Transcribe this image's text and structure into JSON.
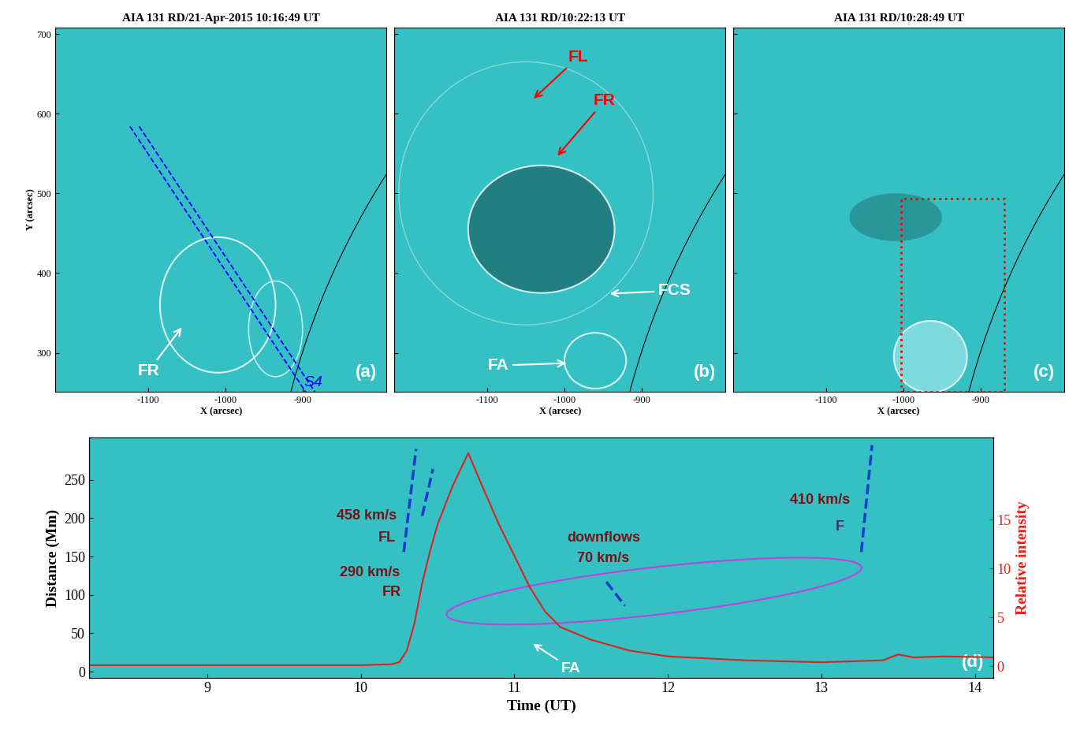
{
  "chart_data": [
    {
      "type": "image",
      "title": "AIA 131 RD/21-Apr-2015 10:16:49 UT",
      "xlabel": "X (arcsec)",
      "ylabel": "Y (arcsec)",
      "xlim": [
        -1221,
        -791
      ],
      "ylim": [
        251,
        708
      ],
      "xticks": [
        -1100,
        -1000,
        -900
      ],
      "yticks": [
        300,
        400,
        500,
        600,
        700
      ],
      "limb_radius": 949,
      "panel_label": "(a)",
      "annotations": [
        {
          "text": "FR",
          "x": -1100,
          "y": 277,
          "arrow_x": -1055,
          "arrow_y": 334,
          "color": "white"
        },
        {
          "text": "S4",
          "x": -886,
          "y": 262,
          "color": "blue"
        }
      ],
      "slit": {
        "x": [
          -1118,
          -888
        ],
        "y": [
          584,
          248
        ],
        "color": "blue",
        "line_style": "dashed"
      }
    },
    {
      "type": "image",
      "title": "AIA 131 RD/10:22:13 UT",
      "xlabel": "X (arcsec)",
      "tick_labels": "x",
      "xlim": [
        -1221,
        -791
      ],
      "ylim": [
        251,
        708
      ],
      "xticks": [
        -1100,
        -1000,
        -900
      ],
      "yticks": [
        300,
        400,
        500,
        600,
        700
      ],
      "limb_radius": 949,
      "panel_label": "(b)",
      "annotations": [
        {
          "text": "FL",
          "x": -982,
          "y": 671,
          "arrow_x": -1042,
          "arrow_y": 617,
          "color": "red"
        },
        {
          "text": "FR",
          "x": -948,
          "y": 616,
          "arrow_x": -1011,
          "arrow_y": 545,
          "color": "red"
        },
        {
          "text": "FCS",
          "x": -857,
          "y": 378,
          "arrow_x": -944,
          "arrow_y": 374,
          "color": "white"
        },
        {
          "text": "FA",
          "x": -1086,
          "y": 284,
          "arrow_x": -995,
          "arrow_y": 287,
          "color": "white"
        }
      ]
    },
    {
      "type": "image",
      "title": "AIA 131 RD/10:28:49 UT",
      "xlabel": "X (arcsec)",
      "tick_labels": "x",
      "xlim": [
        -1221,
        -791
      ],
      "ylim": [
        251,
        708
      ],
      "xticks": [
        -1100,
        -1000,
        -900
      ],
      "yticks": [
        300,
        400,
        500,
        600,
        700
      ],
      "limb_radius": 949,
      "panel_label": "(c)",
      "box": {
        "x": [
          -1003,
          -869
        ],
        "y": [
          251,
          493
        ],
        "color": "red",
        "line_style": "dotted"
      }
    },
    {
      "type": "line",
      "xlabel": "Time (UT)",
      "ylabel": "Distance (Mm)",
      "y2label": "Relative intensity",
      "xlim": [
        8.23,
        14.12
      ],
      "xticks": [
        9,
        10,
        11,
        12,
        13,
        14
      ],
      "ylim": [
        -8,
        305
      ],
      "yticks": [
        0,
        50,
        100,
        150,
        200,
        250
      ],
      "y2lim": [
        -1.2,
        23.4
      ],
      "y2ticks": [
        0,
        5,
        10,
        15
      ],
      "x": [
        8.23,
        9.0,
        9.5,
        10.0,
        10.2,
        10.25,
        10.3,
        10.35,
        10.4,
        10.45,
        10.5,
        10.6,
        10.7,
        10.8,
        10.9,
        11.0,
        11.1,
        11.2,
        11.3,
        11.5,
        11.75,
        12.0,
        12.5,
        13.0,
        13.4,
        13.5,
        13.6,
        13.8,
        14.12
      ],
      "series": [
        {
          "name": "Relative intensity",
          "color": "#e0201b",
          "axis": "y2",
          "values": [
            0.1,
            0.1,
            0.1,
            0.1,
            0.2,
            0.4,
            1.6,
            4.4,
            8.5,
            11.7,
            14.5,
            18.5,
            21.8,
            18.1,
            14.5,
            11.3,
            8.1,
            5.6,
            4.0,
            2.7,
            1.6,
            1.0,
            0.6,
            0.4,
            0.6,
            1.2,
            0.9,
            1.0,
            0.9
          ]
        }
      ],
      "fits": [
        {
          "x": [
            10.28,
            10.36
          ],
          "y": [
            156,
            290
          ],
          "color": "#1a3ccc",
          "line_style": "dashed"
        },
        {
          "x": [
            10.4,
            10.47
          ],
          "y": [
            203,
            264
          ],
          "color": "#1a3ccc",
          "line_style": "dashed"
        },
        {
          "x": [
            11.6,
            11.72
          ],
          "y": [
            117,
            86
          ],
          "color": "#1a3ccc",
          "line_style": "dashed"
        },
        {
          "x": [
            13.26,
            13.33
          ],
          "y": [
            156,
            295
          ],
          "color": "#1a3ccc",
          "line_style": "dashed"
        }
      ],
      "annotations": [
        {
          "text": "458 km/s",
          "x": 10.04,
          "y": 203,
          "color": "#7b1113"
        },
        {
          "text": "FL",
          "x": 10.17,
          "y": 174,
          "color": "#7b1113"
        },
        {
          "text": "290 km/s",
          "x": 10.06,
          "y": 129,
          "color": "#7b1113"
        },
        {
          "text": "FR",
          "x": 10.2,
          "y": 103,
          "color": "#7b1113"
        },
        {
          "text": "downflows",
          "x": 11.58,
          "y": 174,
          "color": "#7b1113"
        },
        {
          "text": "70 km/s",
          "x": 11.58,
          "y": 148,
          "color": "#7b1113"
        },
        {
          "text": "410 km/s",
          "x": 12.99,
          "y": 223,
          "color": "#7b1113"
        },
        {
          "text": "F",
          "x": 13.12,
          "y": 189,
          "color": "#6a1b6a"
        },
        {
          "text": "FA",
          "x": 11.37,
          "y": 4,
          "arrow_x": 11.11,
          "arrow_y": 38,
          "color": "white"
        }
      ],
      "panel_label": "(d)"
    }
  ]
}
